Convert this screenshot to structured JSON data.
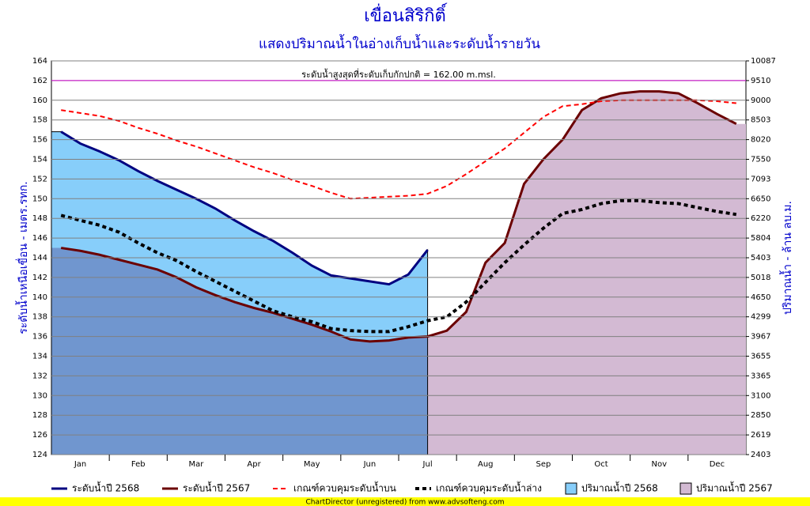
{
  "chart_data": {
    "type": "line",
    "title": "เขื่อนสิริกิติ์",
    "subtitle": "แสดงปริมาณน้ำในอ่างเก็บน้ำและระดับน้ำรายวัน",
    "y_label": "ระดับน้ำเหนือเขื่อน - เมตร.รทก.",
    "y2_label": "ปริมาณน้ำ - ล้าน ลบ.ม.",
    "footer": "ChartDirector (unregistered) from www.advsofteng.com",
    "categories": [
      null,
      "Jan",
      null,
      null,
      "Feb",
      null,
      null,
      "Mar",
      null,
      null,
      "Apr",
      null,
      null,
      "May",
      null,
      null,
      "Jun",
      null,
      null,
      "Jul",
      null,
      null,
      "Aug",
      null,
      null,
      "Sep",
      null,
      null,
      "Oct",
      null,
      null,
      "Nov",
      null,
      null,
      "Dec",
      null
    ],
    "ylim": [
      124,
      164
    ],
    "yticks": [
      124,
      126,
      128,
      130,
      132,
      134,
      136,
      138,
      140,
      142,
      144,
      146,
      148,
      150,
      152,
      154,
      156,
      158,
      160,
      162,
      164
    ],
    "y2lim": [
      2403,
      10087
    ],
    "y2ticks": [
      2403,
      2619,
      2850,
      3100,
      3365,
      3655,
      3967,
      4299,
      4650,
      5018,
      5403,
      5804,
      6220,
      6650,
      7093,
      7550,
      8020,
      8503,
      9000,
      9510,
      10087
    ],
    "grid": true,
    "reference_line": {
      "value": 162,
      "label": "ระดับน้ำสูงสุดที่ระดับเก็บกักปกติ = 162.00 m.msl.",
      "color": "#cc00cc"
    },
    "series": [
      {
        "name": "ปริมาณน้ำปี 2567",
        "color": "#d3bad3",
        "style": "area",
        "axis": "y2",
        "values": [
          5604,
          5543,
          5463,
          5365,
          5268,
          5172,
          5018,
          4834,
          4687,
          4562,
          4457,
          4369,
          4266,
          4166,
          4050,
          3920,
          3889,
          3905,
          3951,
          3967,
          4067,
          4387,
          5307,
          5704,
          6982,
          7550,
          8020,
          8752,
          9051,
          9179,
          9230,
          9230,
          9179,
          8925,
          8652,
          8406
        ]
      },
      {
        "name": "ปริมาณน้ำปี 2568",
        "color": "#87cefa",
        "style": "area",
        "axis": "y2",
        "values": [
          8213,
          7926,
          7738,
          7527,
          7276,
          7049,
          6849,
          6650,
          6435,
          6178,
          5950,
          5744,
          5503,
          5249,
          5057,
          5000,
          4944,
          4889,
          5076,
          5563,
          null,
          null,
          null,
          null,
          null,
          null,
          null,
          null,
          null,
          null,
          null,
          null,
          null,
          null,
          null,
          null
        ]
      },
      {
        "name": "ระดับน้ำปี 2568",
        "color": "#000080",
        "style": "solid",
        "values": [
          156.8,
          155.6,
          154.8,
          153.9,
          152.8,
          151.8,
          150.9,
          150.0,
          149.0,
          147.8,
          146.7,
          145.7,
          144.5,
          143.2,
          142.2,
          141.9,
          141.6,
          141.3,
          142.3,
          144.8,
          null,
          null,
          null,
          null,
          null,
          null,
          null,
          null,
          null,
          null,
          null,
          null,
          null,
          null,
          null,
          null
        ]
      },
      {
        "name": "ระดับน้ำปี 2567",
        "color": "#6b0000",
        "style": "solid",
        "values": [
          145.0,
          144.7,
          144.3,
          143.8,
          143.3,
          142.8,
          142.0,
          141.0,
          140.2,
          139.5,
          138.9,
          138.4,
          137.8,
          137.2,
          136.5,
          135.7,
          135.5,
          135.6,
          135.9,
          136.0,
          136.6,
          138.5,
          143.5,
          145.5,
          151.5,
          154.0,
          156.0,
          159.0,
          160.2,
          160.7,
          160.9,
          160.9,
          160.7,
          159.7,
          158.6,
          157.6
        ]
      },
      {
        "name": "เกณฑ์ควบคุมระดับน้ำบน",
        "color": "#ff0000",
        "style": "dashed",
        "values": [
          159.0,
          158.7,
          158.4,
          157.9,
          157.2,
          156.6,
          155.9,
          155.3,
          154.6,
          153.9,
          153.2,
          152.6,
          151.9,
          151.3,
          150.6,
          150.0,
          150.1,
          150.2,
          150.3,
          150.5,
          151.3,
          152.5,
          153.8,
          155.1,
          156.7,
          158.3,
          159.4,
          159.6,
          159.9,
          160.0,
          160.0,
          160.0,
          160.0,
          160.0,
          159.9,
          159.7
        ]
      },
      {
        "name": "เกณฑ์ควบคุมระดับน้ำล่าง",
        "color": "#000000",
        "style": "dotted",
        "values": [
          148.3,
          147.8,
          147.3,
          146.6,
          145.5,
          144.5,
          143.7,
          142.6,
          141.6,
          140.6,
          139.6,
          138.6,
          138.0,
          137.5,
          136.8,
          136.6,
          136.5,
          136.5,
          137.0,
          137.6,
          138.0,
          139.5,
          141.5,
          143.5,
          145.3,
          147.0,
          148.5,
          148.9,
          149.5,
          149.8,
          149.8,
          149.6,
          149.5,
          149.1,
          148.7,
          148.4
        ]
      }
    ]
  }
}
